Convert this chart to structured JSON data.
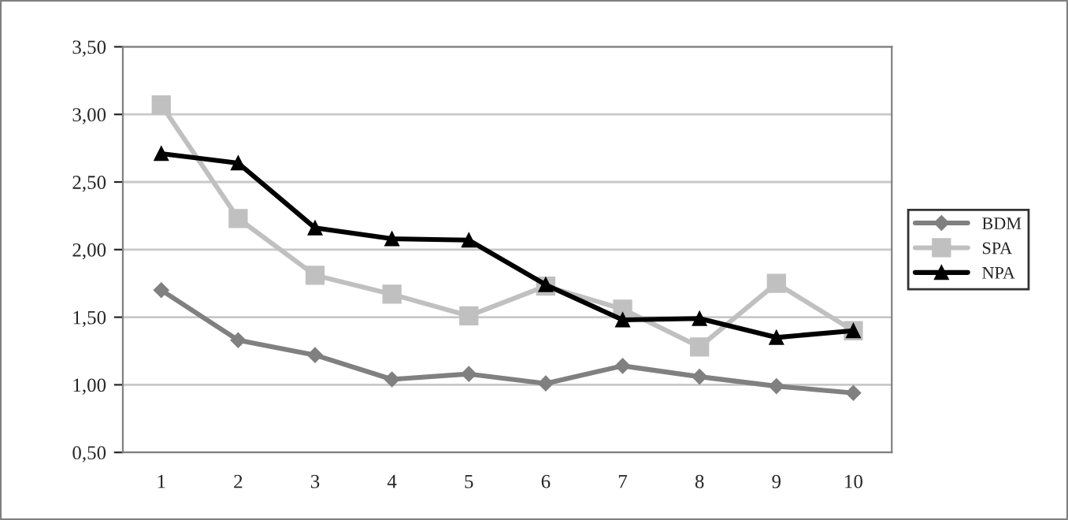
{
  "chart_data": {
    "type": "line",
    "categories": [
      "1",
      "2",
      "3",
      "4",
      "5",
      "6",
      "7",
      "8",
      "9",
      "10"
    ],
    "series": [
      {
        "name": "BDM",
        "color": "#808080",
        "marker": "diamond",
        "values": [
          1.7,
          1.33,
          1.22,
          1.04,
          1.08,
          1.01,
          1.14,
          1.06,
          0.99,
          0.94
        ]
      },
      {
        "name": "SPA",
        "color": "#c0c0c0",
        "marker": "square",
        "values": [
          3.07,
          2.23,
          1.81,
          1.67,
          1.51,
          1.73,
          1.56,
          1.28,
          1.75,
          1.4
        ]
      },
      {
        "name": "NPA",
        "color": "#000000",
        "marker": "triangle",
        "values": [
          2.71,
          2.64,
          2.16,
          2.08,
          2.07,
          1.74,
          1.48,
          1.49,
          1.35,
          1.4
        ]
      }
    ],
    "ylim": [
      0.5,
      3.5
    ],
    "yticks": [
      {
        "value": 0.5,
        "label": "0,50"
      },
      {
        "value": 1.0,
        "label": "1,00"
      },
      {
        "value": 1.5,
        "label": "1,50"
      },
      {
        "value": 2.0,
        "label": "2,00"
      },
      {
        "value": 2.5,
        "label": "2,50"
      },
      {
        "value": 3.0,
        "label": "3,00"
      },
      {
        "value": 3.5,
        "label": "3,50"
      }
    ],
    "grid": "y",
    "legend": "right",
    "line_style": "solid"
  }
}
